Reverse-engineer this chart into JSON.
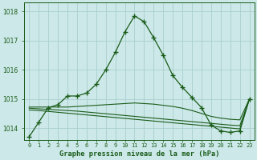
{
  "title": "Graphe pression niveau de la mer (hPa)",
  "bg_color": "#cce8e8",
  "grid_color": "#aacece",
  "line_color": "#1a5c1a",
  "ylim": [
    1013.6,
    1018.3
  ],
  "yticks": [
    1014,
    1015,
    1016,
    1017,
    1018
  ],
  "series_main": [
    1013.7,
    1014.2,
    1014.7,
    1014.8,
    1015.1,
    1015.1,
    1015.2,
    1015.5,
    1016.0,
    1016.6,
    1017.3,
    1017.85,
    1017.65,
    1017.1,
    1016.5,
    1015.8,
    1015.4,
    1015.05,
    1014.7,
    1014.1,
    1013.9,
    1013.85,
    1013.9,
    1015.0
  ],
  "series_high": [
    1014.72,
    1014.72,
    1014.72,
    1014.72,
    1014.72,
    1014.74,
    1014.76,
    1014.78,
    1014.8,
    1014.82,
    1014.84,
    1014.86,
    1014.84,
    1014.82,
    1014.78,
    1014.74,
    1014.68,
    1014.6,
    1014.5,
    1014.4,
    1014.34,
    1014.3,
    1014.28,
    1015.0
  ],
  "series_mid": [
    1014.68,
    1014.66,
    1014.64,
    1014.62,
    1014.6,
    1014.58,
    1014.55,
    1014.52,
    1014.49,
    1014.46,
    1014.43,
    1014.4,
    1014.37,
    1014.34,
    1014.31,
    1014.28,
    1014.25,
    1014.22,
    1014.19,
    1014.16,
    1014.13,
    1014.1,
    1014.08,
    1015.0
  ],
  "series_low": [
    1014.62,
    1014.6,
    1014.57,
    1014.54,
    1014.51,
    1014.48,
    1014.45,
    1014.42,
    1014.39,
    1014.36,
    1014.33,
    1014.3,
    1014.27,
    1014.24,
    1014.21,
    1014.18,
    1014.15,
    1014.12,
    1014.09,
    1014.06,
    1014.03,
    1014.0,
    1013.97,
    1015.0
  ]
}
